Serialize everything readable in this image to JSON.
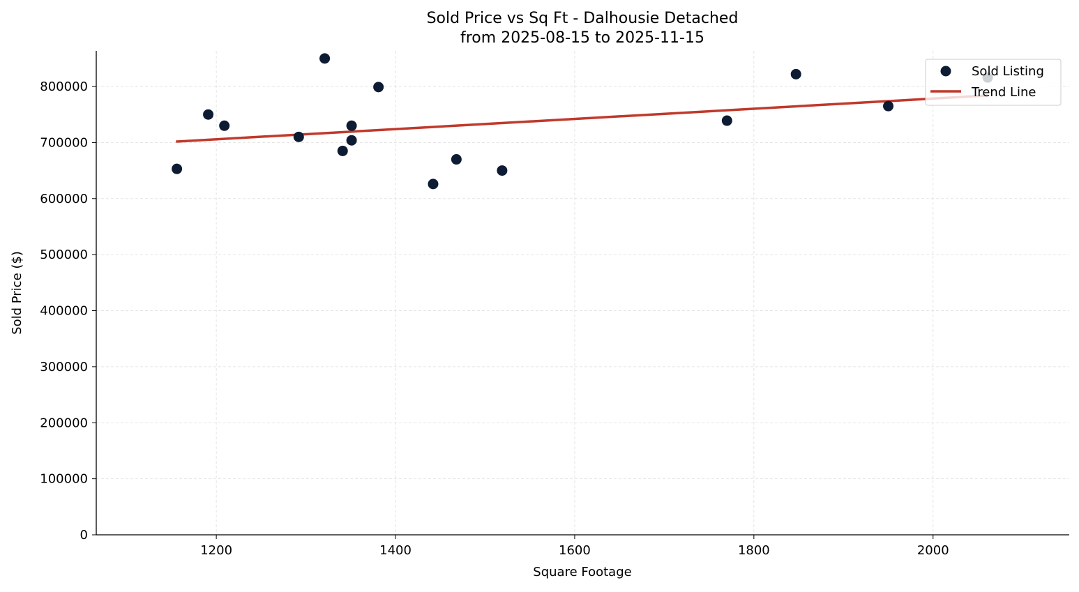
{
  "chart_data": {
    "type": "scatter",
    "title": "Sold Price vs Sq Ft - Dalhousie Detached",
    "subtitle": "from 2025-08-15 to 2025-11-15",
    "xlabel": "Square Footage",
    "ylabel": "Sold Price ($)",
    "xlim": [
      1066,
      2152
    ],
    "ylim": [
      0,
      863500
    ],
    "xticks": [
      1200,
      1400,
      1600,
      1800,
      2000
    ],
    "yticks": [
      0,
      100000,
      200000,
      300000,
      400000,
      500000,
      600000,
      700000,
      800000
    ],
    "grid": true,
    "legend_position": "top-right",
    "series": [
      {
        "name": "Sold Listing",
        "type": "scatter",
        "color": "#0d1b33",
        "points": [
          [
            1156,
            653000
          ],
          [
            1191,
            750000
          ],
          [
            1209,
            730000
          ],
          [
            1292,
            710000
          ],
          [
            1321,
            850000
          ],
          [
            1341,
            685000
          ],
          [
            1351,
            730000
          ],
          [
            1351,
            704000
          ],
          [
            1381,
            799000
          ],
          [
            1442,
            626000
          ],
          [
            1468,
            670000
          ],
          [
            1519,
            650000
          ],
          [
            1770,
            739000
          ],
          [
            1847,
            822000
          ],
          [
            1950,
            765000
          ],
          [
            2061,
            816000
          ]
        ]
      },
      {
        "name": "Trend Line",
        "type": "line",
        "color": "#c0392b",
        "points": [
          [
            1155,
            701700
          ],
          [
            2061,
            784000
          ]
        ]
      }
    ]
  }
}
